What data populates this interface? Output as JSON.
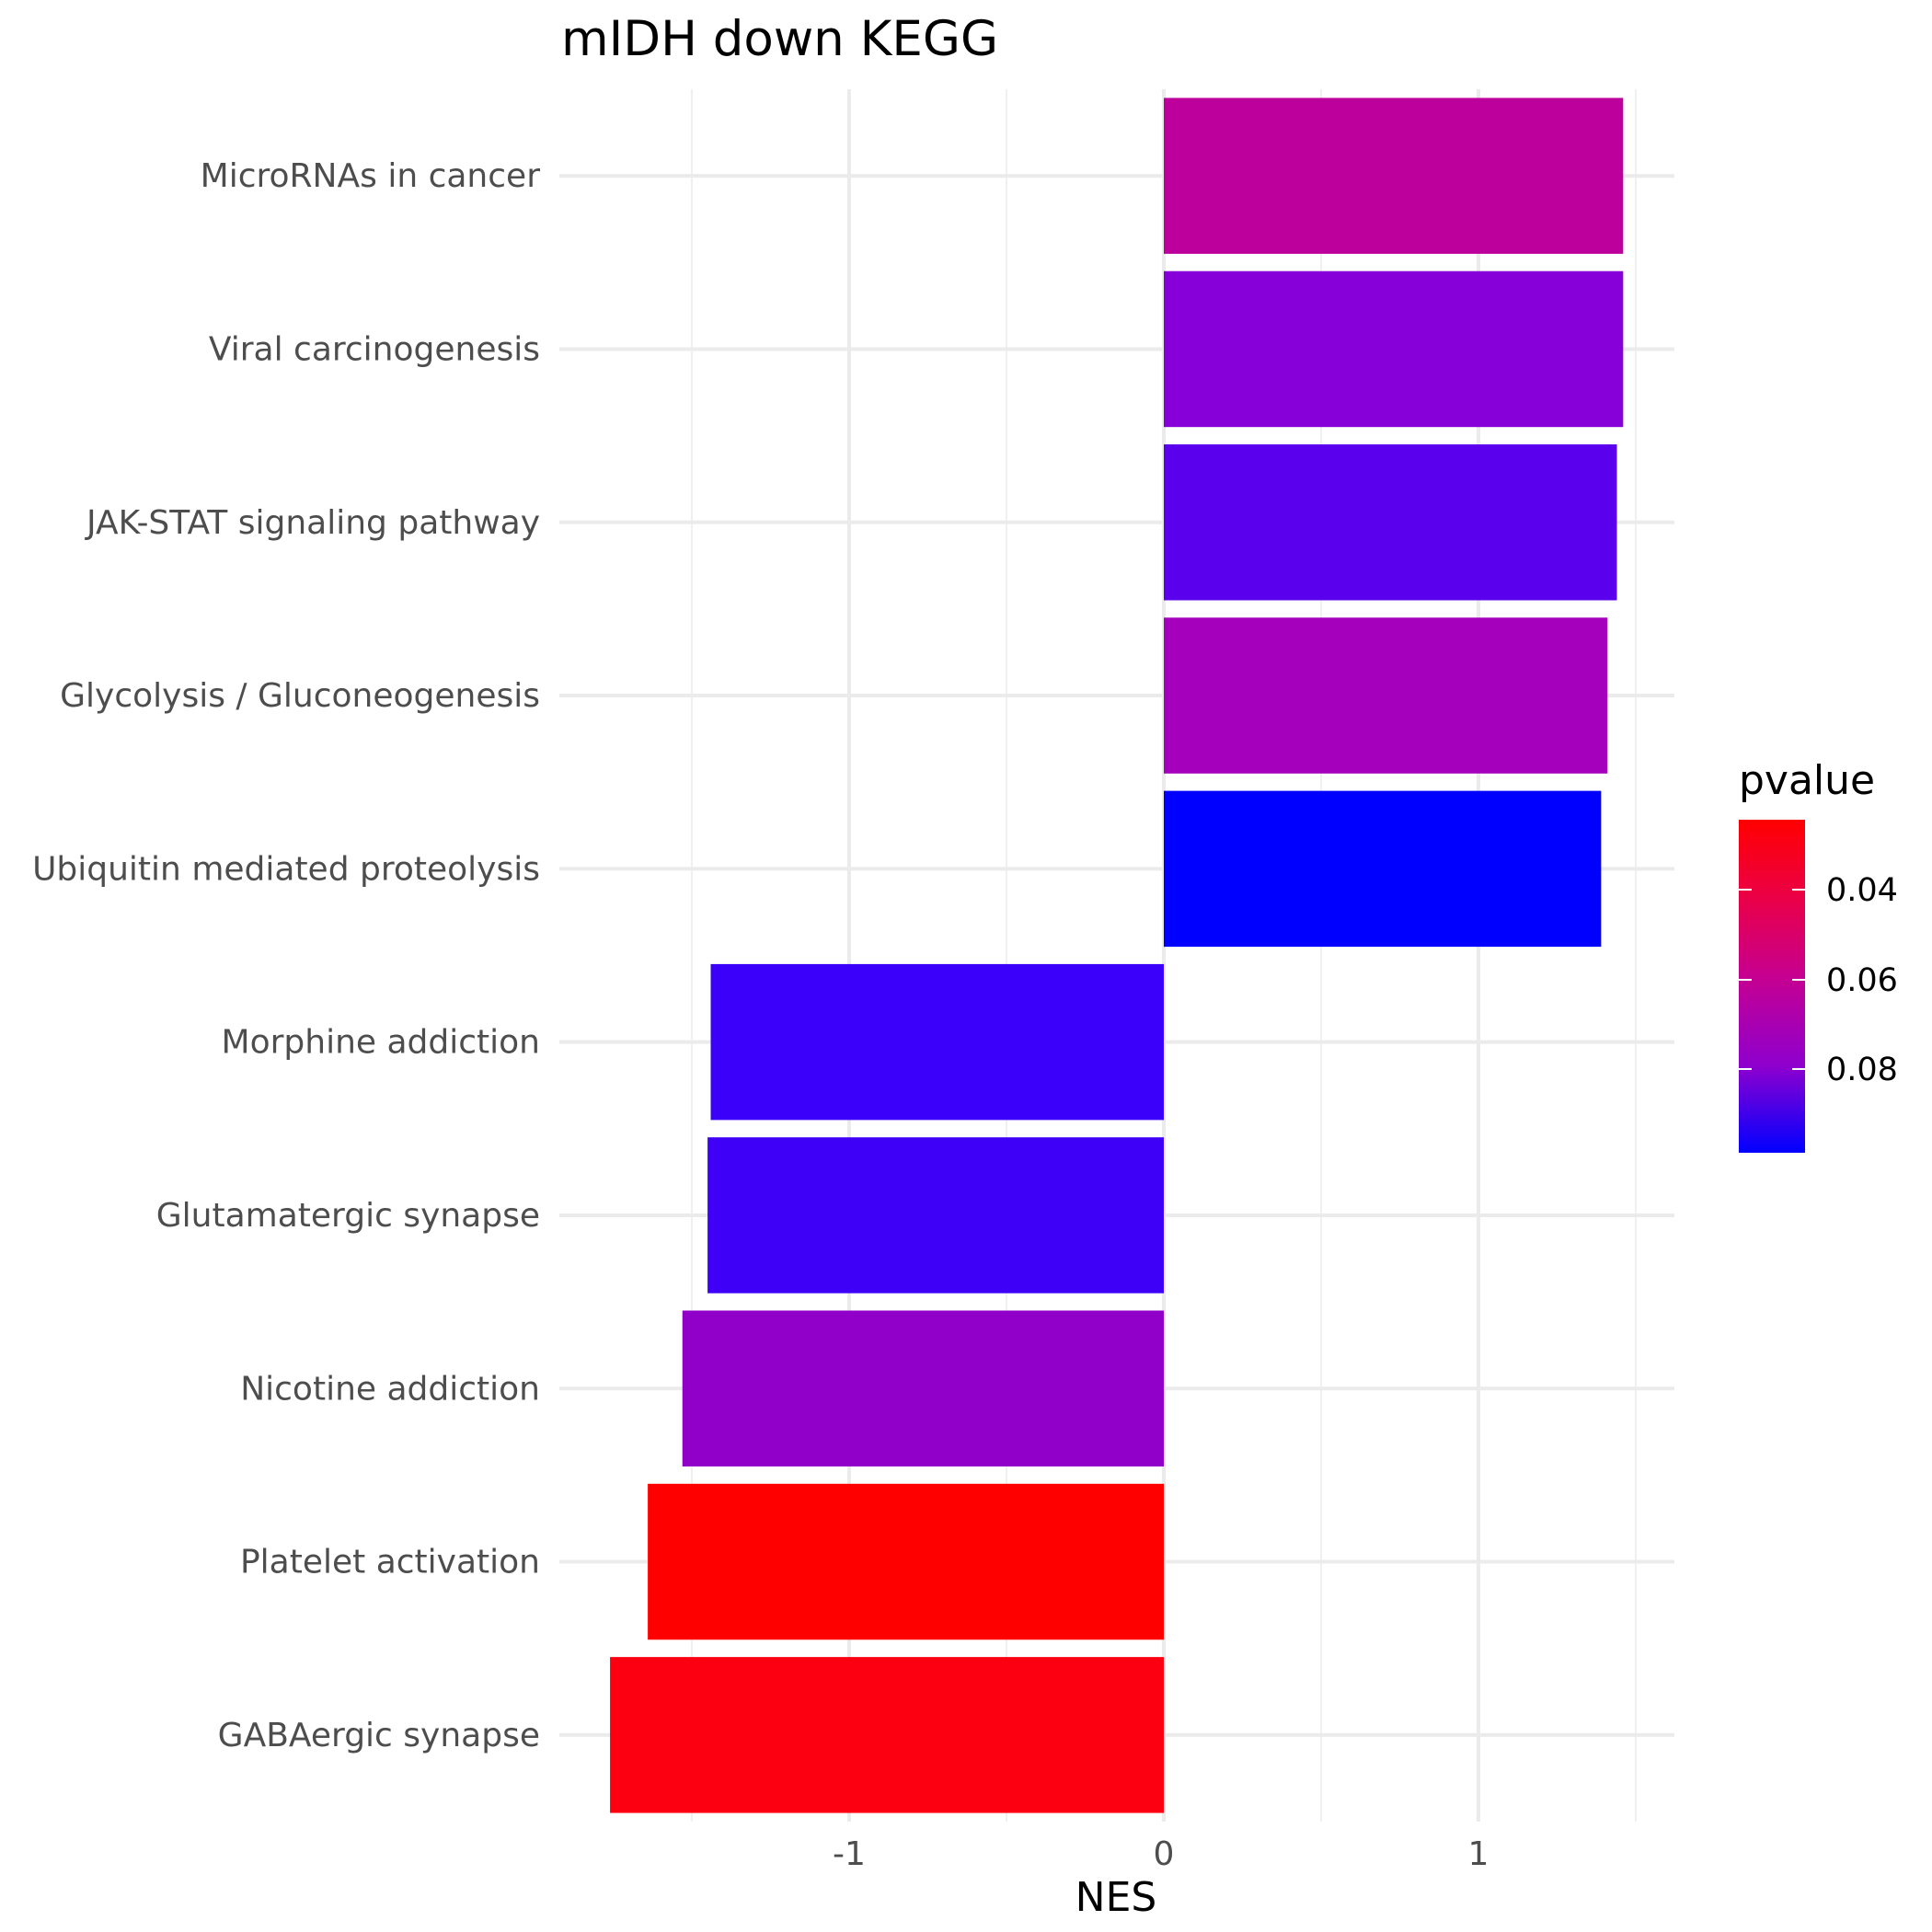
{
  "chart_data": {
    "type": "bar",
    "orientation": "horizontal",
    "title": "mIDH down KEGG",
    "xlabel": "NES",
    "ylabel": "",
    "xlim": [
      -1.78,
      1.62
    ],
    "x_ticks": [
      -1,
      0,
      1
    ],
    "x_tick_labels": [
      "-1",
      "0",
      "1"
    ],
    "grid": true,
    "legend_position": "right",
    "categories": [
      "MicroRNAs in cancer",
      "Viral carcinogenesis",
      "JAK-STAT signaling pathway",
      "Glycolysis / Gluconeogenesis",
      "Ubiquitin mediated proteolysis",
      "Morphine addiction",
      "Glutamatergic synapse",
      "Nicotine addiction",
      "Platelet activation",
      "GABAergic synapse"
    ],
    "values": [
      1.46,
      1.46,
      1.44,
      1.41,
      1.39,
      -1.44,
      -1.45,
      -1.53,
      -1.64,
      -1.76
    ],
    "colors": [
      "#bd009c",
      "#8800d9",
      "#5a00ed",
      "#a500bb",
      "#0000ff",
      "#3a00f9",
      "#3e00f6",
      "#9000c9",
      "#ff0000",
      "#fc0012"
    ],
    "color_scale": {
      "title": "pvalue",
      "low_color": "#0000ff",
      "high_color": "#ff0000",
      "tick_labels": [
        "0.04",
        "0.06",
        "0.08"
      ]
    }
  }
}
